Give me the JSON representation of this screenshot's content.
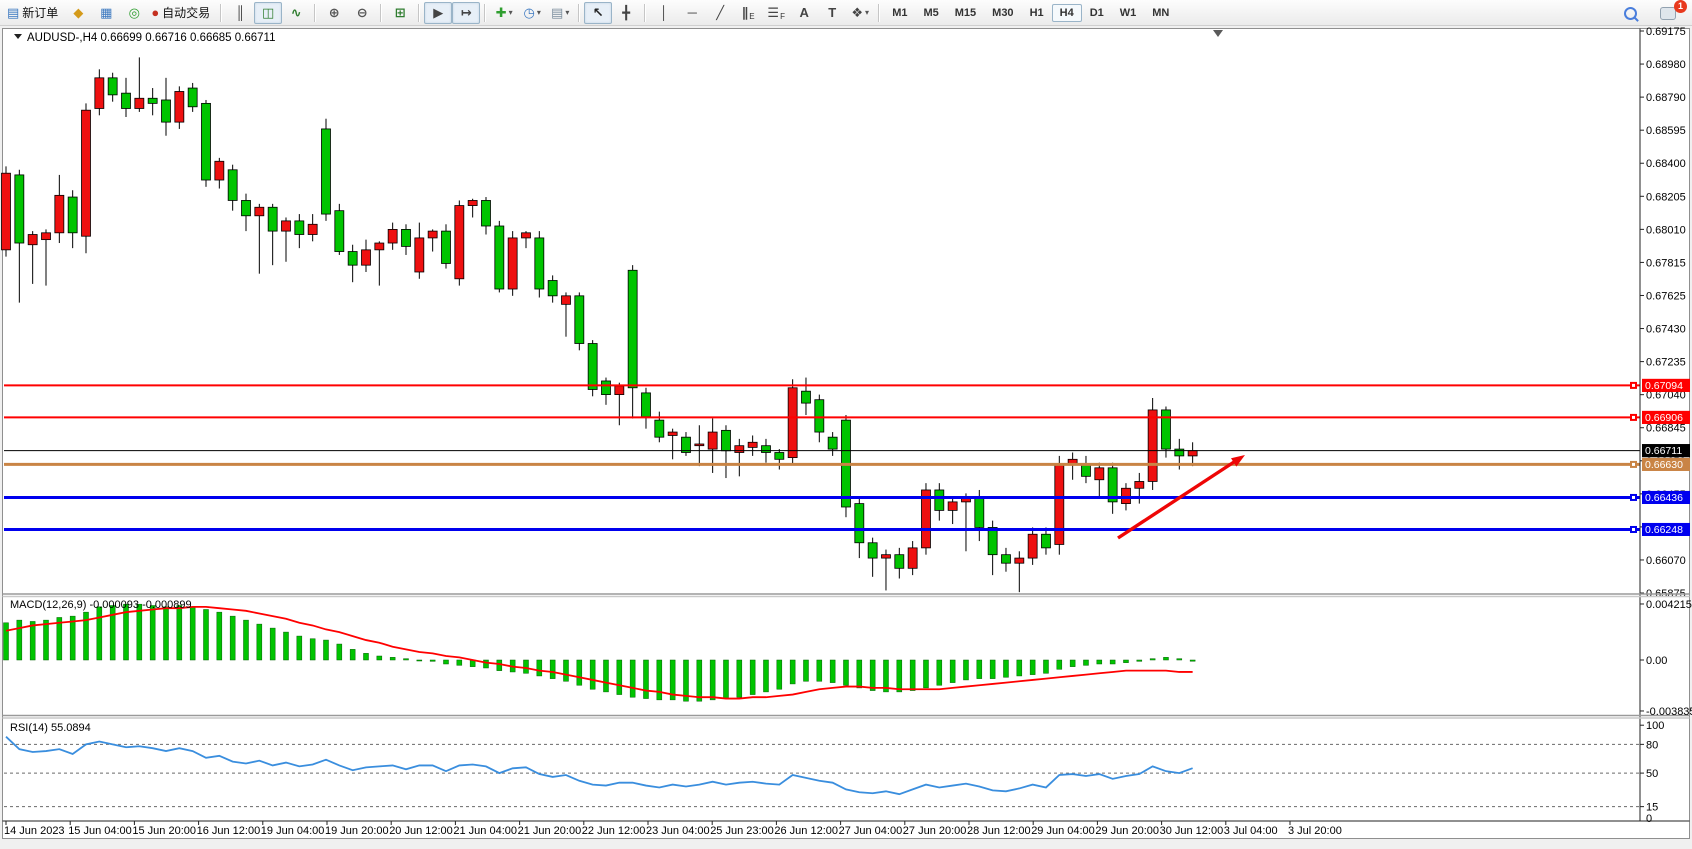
{
  "app": {
    "notification_count": "1"
  },
  "toolbar": {
    "new_order_label": "新订单",
    "auto_trading_label": "自动交易",
    "timeframes": [
      "M1",
      "M5",
      "M15",
      "M30",
      "H1",
      "H4",
      "D1",
      "W1",
      "MN"
    ],
    "active_timeframe": "H4",
    "buttons": [
      {
        "name": "new-order-button",
        "icon": "new-order-icon",
        "glyph": "▤",
        "color": "#3b78c0",
        "label_key": "new_order_label"
      },
      {
        "name": "market-watch-button",
        "icon": "market-watch-icon",
        "glyph": "◆",
        "color": "#d49a1a"
      },
      {
        "name": "data-window-button",
        "icon": "data-window-icon",
        "glyph": "▦",
        "color": "#3b78c0"
      },
      {
        "name": "navigator-button",
        "icon": "navigator-icon",
        "glyph": "◎",
        "color": "#2f9e2f"
      },
      {
        "name": "auto-trading-button",
        "icon": "auto-trading-icon",
        "glyph": "●",
        "color": "#c43020",
        "label_key": "auto_trading_label"
      },
      {
        "sep": true
      },
      {
        "name": "bar-chart-button",
        "icon": "bar-chart-icon",
        "glyph": "║",
        "color": "#444444"
      },
      {
        "name": "candlestick-chart-button",
        "icon": "candlestick-icon",
        "glyph": "◫",
        "color": "#2f7d2f",
        "active": true
      },
      {
        "name": "line-chart-button",
        "icon": "line-chart-icon",
        "glyph": "∿",
        "color": "#2f7d2f"
      },
      {
        "sep": true
      },
      {
        "name": "zoom-in-button",
        "icon": "zoom-in-icon",
        "glyph": "⊕",
        "color": "#555555"
      },
      {
        "name": "zoom-out-button",
        "icon": "zoom-out-icon",
        "glyph": "⊖",
        "color": "#555555"
      },
      {
        "sep": true
      },
      {
        "name": "tile-windows-button",
        "icon": "tile-windows-icon",
        "glyph": "⊞",
        "color": "#2f7d2f"
      },
      {
        "sep": true
      },
      {
        "name": "auto-scroll-button",
        "icon": "auto-scroll-icon",
        "glyph": "▶",
        "color": "#444444",
        "active": true
      },
      {
        "name": "chart-shift-button",
        "icon": "chart-shift-icon",
        "glyph": "↦",
        "color": "#444444",
        "active": true
      },
      {
        "sep": true
      },
      {
        "name": "indicators-button",
        "icon": "indicators-icon",
        "glyph": "✚",
        "color": "#2f9e2f",
        "dd": true
      },
      {
        "name": "periods-button",
        "icon": "clock-icon",
        "glyph": "◷",
        "color": "#3b78c0",
        "dd": true
      },
      {
        "name": "templates-button",
        "icon": "template-icon",
        "glyph": "▤",
        "color": "#7d8f9e",
        "dd": true
      },
      {
        "sep": true
      },
      {
        "name": "cursor-button",
        "icon": "cursor-icon",
        "glyph": "↖",
        "color": "#222222",
        "active": true
      },
      {
        "name": "crosshair-button",
        "icon": "crosshair-icon",
        "glyph": "╋",
        "color": "#444444"
      },
      {
        "sep": true
      },
      {
        "name": "vertical-line-button",
        "icon": "vertical-line-icon",
        "glyph": "│",
        "color": "#444444"
      },
      {
        "name": "horizontal-line-button",
        "icon": "horizontal-line-icon",
        "glyph": "─",
        "color": "#444444"
      },
      {
        "name": "trendline-button",
        "icon": "trendline-icon",
        "glyph": "╱",
        "color": "#444444"
      },
      {
        "name": "channel-button",
        "icon": "channel-icon",
        "glyph": "∥",
        "sub": "E",
        "color": "#444444"
      },
      {
        "name": "fibonacci-button",
        "icon": "fibonacci-icon",
        "glyph": "☰",
        "sub": "F",
        "color": "#444444"
      },
      {
        "name": "text-button",
        "icon": "text-icon",
        "glyph": "A",
        "color": "#444444"
      },
      {
        "name": "text-label-button",
        "icon": "text-label-icon",
        "glyph": "T",
        "color": "#444444"
      },
      {
        "name": "arrows-button",
        "icon": "arrows-icon",
        "glyph": "❖",
        "color": "#444444",
        "dd": true
      },
      {
        "sep": true
      }
    ]
  },
  "chart": {
    "symbol_label": "AUDUSD-,H4",
    "open": "0.66699",
    "high": "0.66716",
    "low": "0.66685",
    "close": "0.66711"
  },
  "price_axis": {
    "ticks": [
      "0.69175",
      "0.68980",
      "0.68790",
      "0.68595",
      "0.68400",
      "0.68205",
      "0.68010",
      "0.67815",
      "0.67625",
      "0.67430",
      "0.67235",
      "0.67040",
      "0.66845",
      "0.66650",
      "0.66455",
      "0.66260",
      "0.66070",
      "0.65875"
    ]
  },
  "macd_panel": {
    "label": "MACD(12,26,9)",
    "main_value": "-0.000093",
    "signal_value": "-0.000899",
    "ticks": [
      "0.004215",
      "0.00",
      "-0.003835"
    ]
  },
  "rsi_panel": {
    "label": "RSI(14)",
    "value": "55.0894",
    "levels": [
      "100",
      "80",
      "50",
      "15",
      "0"
    ]
  },
  "time_axis": {
    "labels": [
      "14 Jun 2023",
      "15 Jun 04:00",
      "15 Jun 20:00",
      "16 Jun 12:00",
      "19 Jun 04:00",
      "19 Jun 20:00",
      "20 Jun 12:00",
      "21 Jun 04:00",
      "21 Jun 20:00",
      "22 Jun 12:00",
      "23 Jun 04:00",
      "25 Jun 23:00",
      "26 Jun 12:00",
      "27 Jun 04:00",
      "27 Jun 20:00",
      "28 Jun 12:00",
      "29 Jun 04:00",
      "29 Jun 20:00",
      "30 Jun 12:00",
      "3 Jul 04:00",
      "3 Jul 20:00"
    ]
  },
  "chart_data": {
    "type": "candlestick",
    "title": "AUDUSD H4 with MACD(12,26,9) and RSI(14)",
    "symbol": "AUDUSD",
    "timeframe": "H4",
    "up_color": "#ee1010",
    "down_color": "#00c400",
    "price_range": {
      "top": 0.69175,
      "bottom": 0.65875
    },
    "candles_ohlc": [
      [
        0.6789,
        0.6838,
        0.6785,
        0.6834
      ],
      [
        0.6833,
        0.6836,
        0.6758,
        0.6793
      ],
      [
        0.6792,
        0.68,
        0.6769,
        0.6798
      ],
      [
        0.6795,
        0.6801,
        0.6768,
        0.6799
      ],
      [
        0.6799,
        0.6833,
        0.6793,
        0.6821
      ],
      [
        0.682,
        0.6824,
        0.679,
        0.6799
      ],
      [
        0.6797,
        0.6875,
        0.6787,
        0.6871
      ],
      [
        0.6872,
        0.6895,
        0.6868,
        0.689
      ],
      [
        0.689,
        0.6893,
        0.6876,
        0.688
      ],
      [
        0.6881,
        0.689,
        0.6867,
        0.6872
      ],
      [
        0.6872,
        0.6902,
        0.687,
        0.6878
      ],
      [
        0.6878,
        0.6884,
        0.6868,
        0.6875
      ],
      [
        0.6877,
        0.689,
        0.6856,
        0.6864
      ],
      [
        0.6864,
        0.6885,
        0.686,
        0.6882
      ],
      [
        0.6884,
        0.6887,
        0.687,
        0.6873
      ],
      [
        0.6875,
        0.6877,
        0.6826,
        0.683
      ],
      [
        0.683,
        0.6843,
        0.6825,
        0.6841
      ],
      [
        0.6836,
        0.6839,
        0.6812,
        0.6818
      ],
      [
        0.6818,
        0.6822,
        0.68,
        0.6809
      ],
      [
        0.6809,
        0.6816,
        0.6775,
        0.6814
      ],
      [
        0.6814,
        0.6816,
        0.678,
        0.68
      ],
      [
        0.68,
        0.6808,
        0.6782,
        0.6806
      ],
      [
        0.6806,
        0.681,
        0.679,
        0.6798
      ],
      [
        0.6798,
        0.681,
        0.6794,
        0.6804
      ],
      [
        0.686,
        0.6866,
        0.6806,
        0.681
      ],
      [
        0.6812,
        0.6816,
        0.6786,
        0.6788
      ],
      [
        0.6788,
        0.6792,
        0.677,
        0.678
      ],
      [
        0.678,
        0.6795,
        0.6776,
        0.6789
      ],
      [
        0.6789,
        0.6794,
        0.6768,
        0.6793
      ],
      [
        0.6793,
        0.6805,
        0.6789,
        0.6801
      ],
      [
        0.6801,
        0.6804,
        0.6786,
        0.6791
      ],
      [
        0.6776,
        0.6805,
        0.6772,
        0.6796
      ],
      [
        0.6796,
        0.6801,
        0.6788,
        0.68
      ],
      [
        0.68,
        0.6804,
        0.6778,
        0.6781
      ],
      [
        0.6772,
        0.6818,
        0.6768,
        0.6815
      ],
      [
        0.6815,
        0.6819,
        0.6808,
        0.6818
      ],
      [
        0.6818,
        0.682,
        0.6798,
        0.6803
      ],
      [
        0.6803,
        0.6806,
        0.6764,
        0.6766
      ],
      [
        0.6766,
        0.68,
        0.6762,
        0.6796
      ],
      [
        0.6796,
        0.68,
        0.679,
        0.6799
      ],
      [
        0.6796,
        0.68,
        0.6761,
        0.6766
      ],
      [
        0.6771,
        0.6774,
        0.6758,
        0.6762
      ],
      [
        0.6757,
        0.6764,
        0.6738,
        0.6762
      ],
      [
        0.6762,
        0.6764,
        0.673,
        0.6734
      ],
      [
        0.6734,
        0.6736,
        0.6703,
        0.6707
      ],
      [
        0.6712,
        0.6714,
        0.6698,
        0.6704
      ],
      [
        0.6704,
        0.6711,
        0.6686,
        0.6709
      ],
      [
        0.6777,
        0.678,
        0.669,
        0.6708
      ],
      [
        0.6705,
        0.6708,
        0.6684,
        0.6691
      ],
      [
        0.6689,
        0.6694,
        0.6676,
        0.6679
      ],
      [
        0.668,
        0.6684,
        0.6666,
        0.6682
      ],
      [
        0.6679,
        0.6682,
        0.6668,
        0.667
      ],
      [
        0.6674,
        0.6686,
        0.6662,
        0.6675
      ],
      [
        0.6672,
        0.669,
        0.6658,
        0.6682
      ],
      [
        0.6683,
        0.6686,
        0.6655,
        0.6671
      ],
      [
        0.667,
        0.6678,
        0.6656,
        0.6674
      ],
      [
        0.6673,
        0.668,
        0.6668,
        0.6676
      ],
      [
        0.6674,
        0.6678,
        0.6664,
        0.667
      ],
      [
        0.667,
        0.6672,
        0.666,
        0.6666
      ],
      [
        0.6667,
        0.6713,
        0.6663,
        0.6708
      ],
      [
        0.6706,
        0.6714,
        0.6692,
        0.6699
      ],
      [
        0.6701,
        0.6704,
        0.6676,
        0.6682
      ],
      [
        0.6679,
        0.6682,
        0.6668,
        0.6672
      ],
      [
        0.6689,
        0.6692,
        0.6632,
        0.6638
      ],
      [
        0.664,
        0.6644,
        0.6608,
        0.6617
      ],
      [
        0.6617,
        0.662,
        0.6597,
        0.6608
      ],
      [
        0.6608,
        0.6613,
        0.6589,
        0.661
      ],
      [
        0.661,
        0.6614,
        0.6596,
        0.6602
      ],
      [
        0.6602,
        0.6618,
        0.6598,
        0.6614
      ],
      [
        0.6614,
        0.6652,
        0.661,
        0.6648
      ],
      [
        0.6648,
        0.6652,
        0.663,
        0.6636
      ],
      [
        0.6636,
        0.6644,
        0.6628,
        0.6641
      ],
      [
        0.6641,
        0.6646,
        0.6612,
        0.6644
      ],
      [
        0.6644,
        0.6648,
        0.6618,
        0.6626
      ],
      [
        0.6626,
        0.663,
        0.6598,
        0.661
      ],
      [
        0.661,
        0.6614,
        0.66,
        0.6605
      ],
      [
        0.6605,
        0.6612,
        0.6588,
        0.6608
      ],
      [
        0.6608,
        0.6626,
        0.6604,
        0.6622
      ],
      [
        0.6622,
        0.6626,
        0.661,
        0.6614
      ],
      [
        0.6616,
        0.6668,
        0.661,
        0.6663
      ],
      [
        0.6663,
        0.667,
        0.6654,
        0.6666
      ],
      [
        0.6663,
        0.6668,
        0.6652,
        0.6656
      ],
      [
        0.6654,
        0.6664,
        0.6644,
        0.6661
      ],
      [
        0.6661,
        0.6664,
        0.6634,
        0.6641
      ],
      [
        0.664,
        0.6652,
        0.6636,
        0.6649
      ],
      [
        0.6649,
        0.6658,
        0.664,
        0.6653
      ],
      [
        0.6653,
        0.6702,
        0.6648,
        0.6695
      ],
      [
        0.6695,
        0.6697,
        0.6667,
        0.6672
      ],
      [
        0.6672,
        0.6678,
        0.666,
        0.6668
      ],
      [
        0.6668,
        0.6676,
        0.6662,
        0.66711
      ]
    ],
    "hlines": [
      {
        "label": "0.67094",
        "price": 0.67094,
        "color": "#ff0000",
        "width": 2,
        "handle": true
      },
      {
        "label": "0.66906",
        "price": 0.66906,
        "color": "#ff0000",
        "width": 2,
        "handle": true
      },
      {
        "label": "0.66711",
        "price": 0.66711,
        "color": "#000000",
        "width": 1,
        "current_price": true,
        "handle": false
      },
      {
        "label": "0.66630",
        "price": 0.6663,
        "color": "#c98445",
        "width": 3,
        "handle": true
      },
      {
        "label": "0.66436",
        "price": 0.66436,
        "color": "#0000ee",
        "width": 3,
        "handle": true
      },
      {
        "label": "0.66248",
        "price": 0.66248,
        "color": "#0000ee",
        "width": 3,
        "handle": true
      }
    ],
    "macd": {
      "range": {
        "top": 0.004215,
        "bottom": -0.003835
      },
      "histogram": [
        0.0028,
        0.003,
        0.0029,
        0.003,
        0.0032,
        0.0033,
        0.0036,
        0.004,
        0.0041,
        0.0042,
        0.0042,
        0.0041,
        0.004,
        0.0041,
        0.004,
        0.0038,
        0.0036,
        0.0033,
        0.003,
        0.0027,
        0.0024,
        0.0021,
        0.0018,
        0.0016,
        0.0015,
        0.0012,
        0.0008,
        0.0005,
        0.0003,
        0.0002,
        0.0001,
        0.0,
        -0.0001,
        -0.0003,
        -0.0004,
        -0.0005,
        -0.0006,
        -0.0008,
        -0.0009,
        -0.001,
        -0.0012,
        -0.0014,
        -0.0016,
        -0.0019,
        -0.0022,
        -0.0024,
        -0.0026,
        -0.0028,
        -0.0029,
        -0.003,
        -0.003,
        -0.0031,
        -0.0031,
        -0.003,
        -0.0029,
        -0.0028,
        -0.0026,
        -0.0024,
        -0.0022,
        -0.0018,
        -0.0016,
        -0.0016,
        -0.0017,
        -0.0019,
        -0.0021,
        -0.0023,
        -0.0024,
        -0.0024,
        -0.0023,
        -0.0021,
        -0.0019,
        -0.0017,
        -0.0015,
        -0.0014,
        -0.0014,
        -0.0013,
        -0.0012,
        -0.0011,
        -0.001,
        -0.0007,
        -0.0005,
        -0.0004,
        -0.0003,
        -0.0003,
        -0.0002,
        -0.0001,
        0.0001,
        0.0002,
        0.0001,
        -9.3e-05
      ],
      "signal": [
        0.0022,
        0.0024,
        0.0026,
        0.0027,
        0.0028,
        0.0029,
        0.003,
        0.0032,
        0.0034,
        0.0036,
        0.0037,
        0.0038,
        0.0039,
        0.0039,
        0.004,
        0.004,
        0.0039,
        0.0038,
        0.0037,
        0.0035,
        0.0033,
        0.0031,
        0.0028,
        0.0026,
        0.0023,
        0.0021,
        0.0018,
        0.0015,
        0.0013,
        0.001,
        0.0008,
        0.0006,
        0.0005,
        0.0003,
        0.0002,
        0.0,
        -0.0002,
        -0.0003,
        -0.0005,
        -0.0006,
        -0.0008,
        -0.0009,
        -0.0011,
        -0.0013,
        -0.0015,
        -0.0017,
        -0.0019,
        -0.0021,
        -0.0023,
        -0.0024,
        -0.0026,
        -0.0027,
        -0.0028,
        -0.0028,
        -0.0029,
        -0.0029,
        -0.0028,
        -0.0028,
        -0.0027,
        -0.0026,
        -0.0024,
        -0.0022,
        -0.0021,
        -0.002,
        -0.002,
        -0.0021,
        -0.0021,
        -0.0022,
        -0.0022,
        -0.0022,
        -0.0022,
        -0.0021,
        -0.002,
        -0.0019,
        -0.0018,
        -0.0017,
        -0.0016,
        -0.0015,
        -0.0014,
        -0.0013,
        -0.0012,
        -0.0011,
        -0.001,
        -0.0009,
        -0.0008,
        -0.0008,
        -0.0008,
        -0.0008,
        -0.0009,
        -0.000899
      ],
      "histogram_color": "#00c400",
      "signal_color": "#ff0000"
    },
    "rsi": {
      "range": [
        0,
        100
      ],
      "levels": [
        80,
        50,
        15
      ],
      "line_color": "#3a8ede",
      "values": [
        88,
        75,
        72,
        73,
        75,
        70,
        80,
        83,
        80,
        77,
        78,
        76,
        73,
        76,
        73,
        66,
        68,
        62,
        60,
        63,
        58,
        61,
        57,
        59,
        64,
        58,
        53,
        56,
        57,
        58,
        54,
        58,
        58,
        52,
        58,
        59,
        57,
        50,
        55,
        56,
        49,
        46,
        48,
        42,
        38,
        37,
        40,
        40,
        37,
        35,
        38,
        36,
        38,
        41,
        38,
        40,
        41,
        39,
        38,
        48,
        45,
        42,
        40,
        33,
        30,
        29,
        31,
        28,
        33,
        38,
        35,
        37,
        39,
        36,
        32,
        31,
        34,
        38,
        35,
        48,
        49,
        47,
        49,
        44,
        47,
        49,
        57,
        52,
        50,
        55.1
      ]
    },
    "annotation_arrow": {
      "tail": [
        1118,
        538
      ],
      "tip": [
        1245,
        455
      ],
      "color": "#ee0606"
    }
  }
}
